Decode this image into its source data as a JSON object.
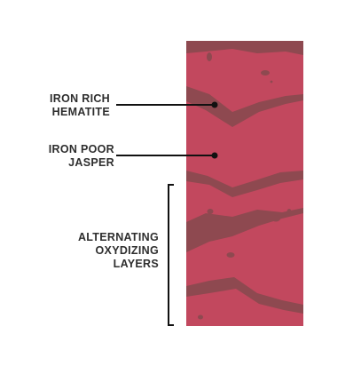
{
  "labels": {
    "hematite": {
      "line1": "IRON RICH",
      "line2": "HEMATITE"
    },
    "jasper": {
      "line1": "IRON POOR",
      "line2": "JASPER"
    },
    "layers": {
      "line1": "ALTERNATING",
      "line2": "OXYDIZING",
      "line3": "LAYERS"
    }
  },
  "colors": {
    "jasper_red": "#c2485e",
    "hematite_band": "#8e4950",
    "speck": "#8e4950",
    "leader": "#111111",
    "text": "#2e2e2e",
    "background": "#ffffff"
  }
}
